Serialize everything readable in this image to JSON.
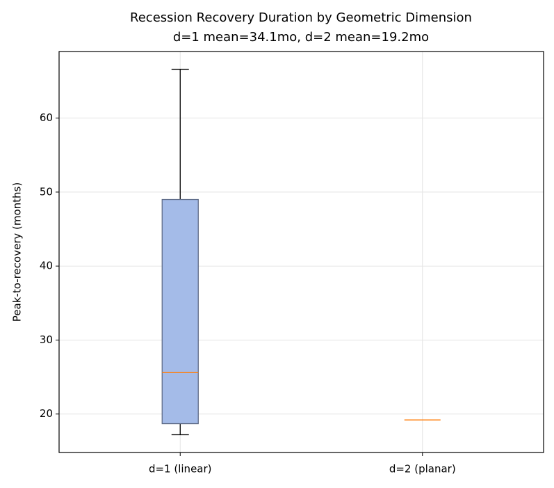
{
  "chart_data": {
    "type": "box",
    "title": "Recession Recovery Duration by Geometric Dimension",
    "subtitle": "d=1 mean=34.1mo, d=2 mean=19.2mo",
    "y_label": "Peak-to-recovery (months)",
    "categories": [
      "d=1 (linear)",
      "d=2 (planar)"
    ],
    "boxes": [
      {
        "whislo": 17.2,
        "q1": 18.7,
        "med": 25.6,
        "q3": 49.0,
        "whishi": 66.6
      },
      {
        "whislo": 19.2,
        "q1": 19.2,
        "med": 19.2,
        "q3": 19.2,
        "whishi": 19.2
      }
    ],
    "color": "#a4bbe8",
    "edge_color": "#5d6a86",
    "median_color": "#ff7f0e",
    "ylim": [
      14.8,
      69.0
    ],
    "yticks": [
      20,
      30,
      40,
      50,
      60
    ],
    "grid": true
  }
}
